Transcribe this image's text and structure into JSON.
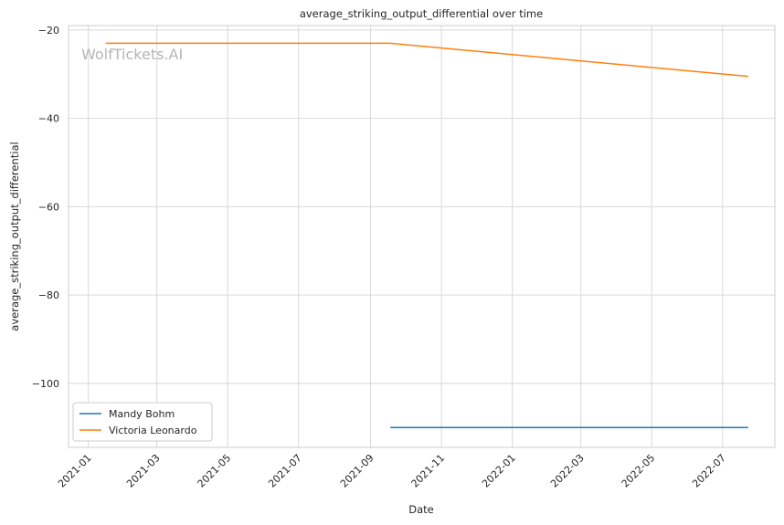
{
  "chart_data": {
    "type": "line",
    "title": "average_striking_output_differential over time",
    "xlabel": "Date",
    "ylabel": "average_striking_output_differential",
    "watermark": "WolfTickets.AI",
    "x_ticks": [
      "2021-01",
      "2021-03",
      "2021-05",
      "2021-07",
      "2021-09",
      "2021-11",
      "2022-01",
      "2022-03",
      "2022-05",
      "2022-07"
    ],
    "y_ticks": [
      -20,
      -40,
      -60,
      -80,
      -100
    ],
    "xlim": [
      "2020-12-15",
      "2022-08-15"
    ],
    "ylim": [
      -114.5,
      -19.0
    ],
    "grid": true,
    "legend_position": "lower-left",
    "series": [
      {
        "name": "Mandy Bohm",
        "color": "#1f77b4",
        "points": [
          {
            "x": "2021-09-18",
            "y": -110.0
          },
          {
            "x": "2022-07-23",
            "y": -110.0
          }
        ]
      },
      {
        "name": "Victoria Leonardo",
        "color": "#ff7f0e",
        "points": [
          {
            "x": "2021-01-16",
            "y": -23.0
          },
          {
            "x": "2021-09-18",
            "y": -23.0
          },
          {
            "x": "2022-07-23",
            "y": -30.5
          }
        ]
      }
    ]
  }
}
